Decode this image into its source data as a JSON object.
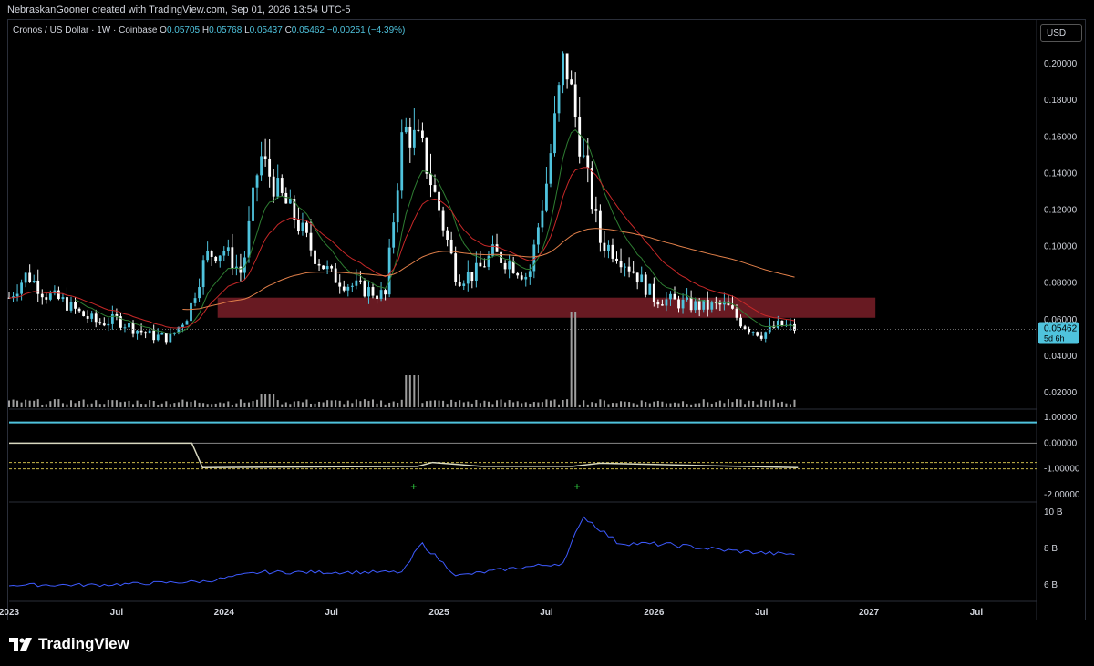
{
  "header": {
    "attribution": "NebraskanGooner created with TradingView.com, Sep 01, 2026 13:54 UTC-5"
  },
  "legend": {
    "symbol": "Cronos / US Dollar · 1W · Coinbase",
    "open_label": "O",
    "open": "0.05705",
    "high_label": "H",
    "high": "0.05768",
    "low_label": "L",
    "low": "0.05437",
    "close_label": "C",
    "close": "0.05462",
    "change": "−0.00251 (−4.39%)"
  },
  "currency": "USD",
  "price_badge": {
    "price": "0.05462",
    "countdown": "5d 6h"
  },
  "brand": "TradingView",
  "colors": {
    "up": "#4fc3dd",
    "down": "#ffffff",
    "ema_orange": "#e2804a",
    "ema_red": "#c62828",
    "ema_green": "#2e7d32",
    "zone": "#7a1e28",
    "osc_blue": "#3d5afe",
    "cyan": "#4fc3dd"
  },
  "chart_data": [
    {
      "type": "candlestick",
      "title": "",
      "y_ticks": [
        "0.20000",
        "0.18000",
        "0.16000",
        "0.14000",
        "0.12000",
        "0.10000",
        "0.08000",
        "0.06000",
        "0.04000",
        "0.02000"
      ],
      "ylim": [
        0.012,
        0.21
      ],
      "x_ticks": [
        "2023",
        "Jul",
        "2024",
        "Jul",
        "2025",
        "Jul",
        "2026",
        "Jul",
        "2027",
        "Jul"
      ],
      "weekly_closes_sample": [
        [
          "2023-01",
          0.072
        ],
        [
          "2023-02",
          0.085
        ],
        [
          "2023-03",
          0.074
        ],
        [
          "2023-04",
          0.07
        ],
        [
          "2023-05",
          0.063
        ],
        [
          "2023-06",
          0.058
        ],
        [
          "2023-07",
          0.06
        ],
        [
          "2023-08",
          0.055
        ],
        [
          "2023-09",
          0.051
        ],
        [
          "2023-10",
          0.05
        ],
        [
          "2023-11",
          0.063
        ],
        [
          "2023-12",
          0.095
        ],
        [
          "2024-01",
          0.098
        ],
        [
          "2024-02",
          0.085
        ],
        [
          "2024-03",
          0.15
        ],
        [
          "2024-04",
          0.13
        ],
        [
          "2024-05",
          0.115
        ],
        [
          "2024-06",
          0.096
        ],
        [
          "2024-07",
          0.084
        ],
        [
          "2024-08",
          0.079
        ],
        [
          "2024-09",
          0.076
        ],
        [
          "2024-10",
          0.073
        ],
        [
          "2024-11",
          0.165
        ],
        [
          "2024-12",
          0.155
        ],
        [
          "2025-01",
          0.12
        ],
        [
          "2025-02",
          0.083
        ],
        [
          "2025-03",
          0.085
        ],
        [
          "2025-04",
          0.096
        ],
        [
          "2025-05",
          0.091
        ],
        [
          "2025-06",
          0.083
        ],
        [
          "2025-07",
          0.135
        ],
        [
          "2025-08",
          0.205
        ],
        [
          "2025-09",
          0.15
        ],
        [
          "2025-10",
          0.103
        ],
        [
          "2025-11",
          0.096
        ],
        [
          "2025-12",
          0.085
        ],
        [
          "2026-01",
          0.072
        ],
        [
          "2026-02",
          0.07
        ],
        [
          "2026-03",
          0.068
        ],
        [
          "2026-04",
          0.067
        ],
        [
          "2026-05",
          0.068
        ],
        [
          "2026-06",
          0.057
        ],
        [
          "2026-07",
          0.052
        ],
        [
          "2026-08",
          0.057
        ],
        [
          "2026-09",
          0.0546
        ]
      ],
      "support_zone": [
        0.061,
        0.072
      ],
      "last_price": 0.05462
    },
    {
      "type": "line",
      "title": "",
      "y_ticks": [
        "1.00000",
        "0.00000",
        "-1.00000",
        "-2.00000"
      ],
      "ylim": [
        -2.0,
        1.0
      ],
      "markers": [
        "+",
        "+"
      ]
    },
    {
      "type": "line",
      "title": "",
      "y_ticks": [
        "10 B",
        "8 B",
        "6 B"
      ],
      "ylim": [
        5.5,
        10
      ],
      "values_sample": [
        [
          "2023-01",
          6.0
        ],
        [
          "2023-06",
          6.0
        ],
        [
          "2023-12",
          6.2
        ],
        [
          "2024-03",
          6.7
        ],
        [
          "2024-07",
          6.7
        ],
        [
          "2024-11",
          6.7
        ],
        [
          "2024-12",
          8.3
        ],
        [
          "2025-02",
          6.5
        ],
        [
          "2025-05",
          6.9
        ],
        [
          "2025-08",
          7.2
        ],
        [
          "2025-09",
          9.8
        ],
        [
          "2025-11",
          8.3
        ],
        [
          "2026-02",
          8.2
        ],
        [
          "2026-05",
          7.9
        ],
        [
          "2026-08",
          7.7
        ]
      ]
    }
  ]
}
